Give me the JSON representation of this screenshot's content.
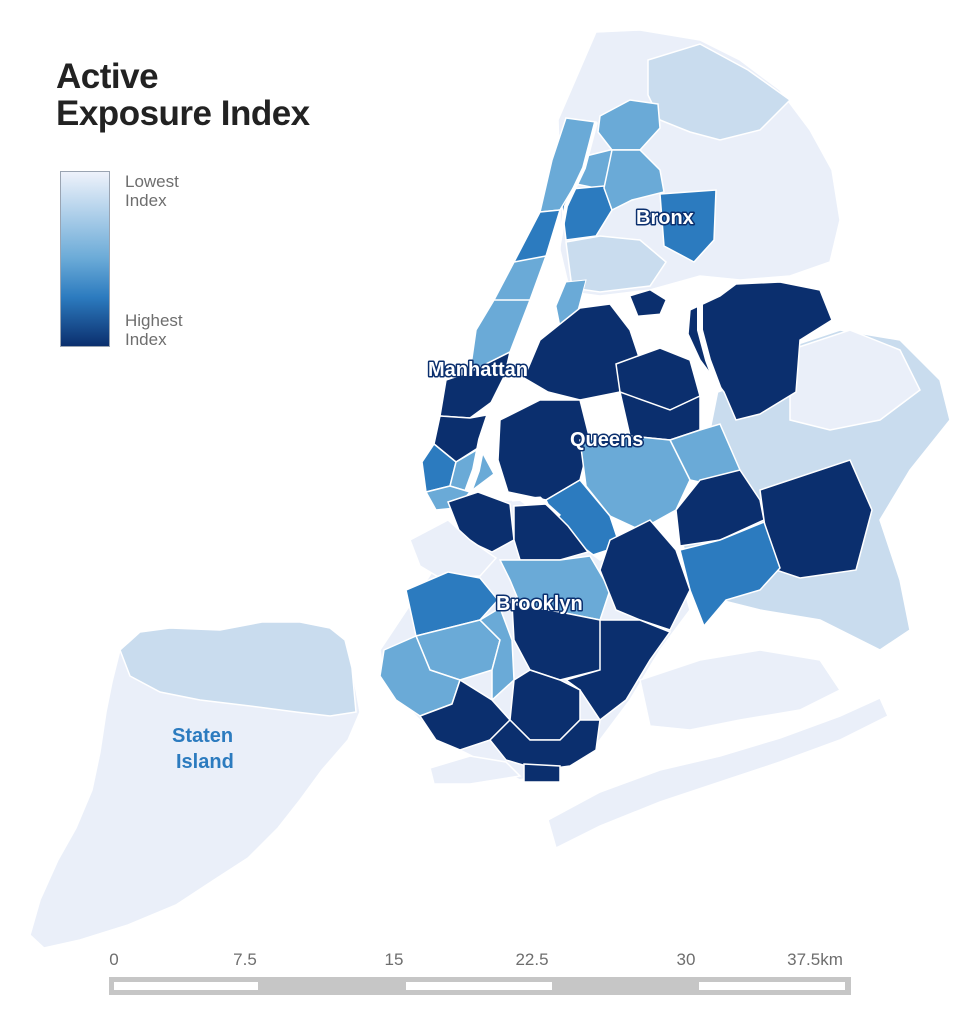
{
  "title": {
    "line1": "Active",
    "line2": "Exposure Index"
  },
  "legend": {
    "low_line1": "Lowest",
    "low_line2": "Index",
    "high_line1": "Highest",
    "high_line2": "Index",
    "color_low": "#eef2fb",
    "color_high": "#0b2f6e"
  },
  "boroughs": {
    "bronx": "Bronx",
    "manhattan": "Manhattan",
    "queens": "Queens",
    "brooklyn": "Brooklyn",
    "staten_island_line1": "Staten",
    "staten_island_line2": "Island"
  },
  "scale": {
    "labels": [
      "0",
      "7.5",
      "15",
      "22.5",
      "30",
      "37.5km"
    ]
  },
  "colors": {
    "level1": "#eaeff9",
    "level2": "#c9dcee",
    "level3": "#6aaad7",
    "level4": "#2c7bbf",
    "level5": "#0b2f6e",
    "water": "#ffffff"
  }
}
